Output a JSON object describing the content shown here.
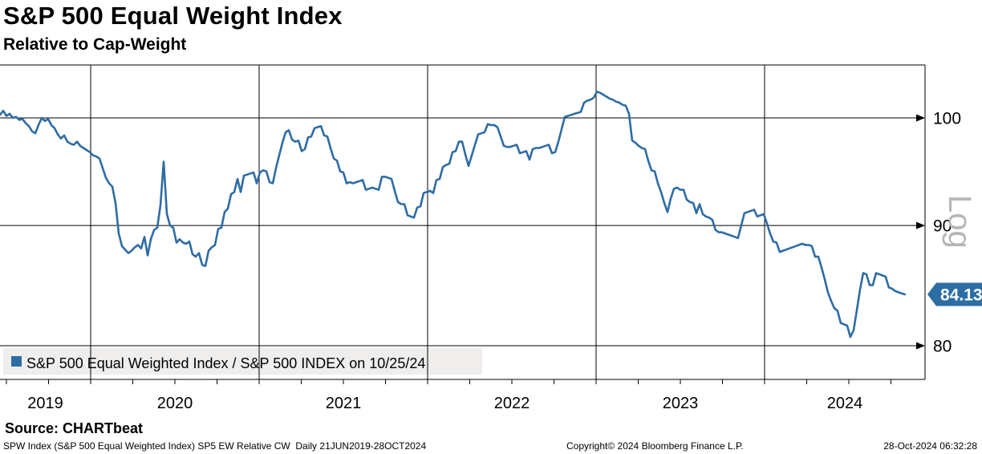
{
  "header": {
    "title": "S&P 500 Equal Weight Index",
    "subtitle": "Relative to Cap-Weight"
  },
  "legend": {
    "label": "S&P 500 Equal Weighted Index / S&P 500 INDEX on 10/25/24",
    "swatch_color": "#2e6ca4",
    "background": "#efeeed"
  },
  "source_label": "Source: CHARTbeat",
  "footer": {
    "left": "SPW Index (S&P 500 Equal Weighted Index) SP5 EW Relative CW  Daily 21JUN2019-28OCT2024",
    "center": "Copyright© 2024 Bloomberg Finance L.P.",
    "right": "28-Oct-2024 06:32:28"
  },
  "last_price_badge": {
    "value": "84.13",
    "fill": "#2e6da4",
    "text_color": "#ffffff"
  },
  "colors": {
    "line": "#2e6ca4",
    "grid": "#000000",
    "scale_label": "#b6b6b6"
  },
  "chart_data": {
    "type": "line",
    "title": "S&P 500 Equal Weight Index",
    "subtitle": "Relative to Cap-Weight",
    "x_axis": {
      "tick_labels": [
        "2019",
        "2020",
        "2021",
        "2022",
        "2023",
        "2024"
      ],
      "start": "21JUN2019",
      "end": "28OCT2024",
      "start_year_decimal": 2019.462,
      "end_year_decimal": 2024.833,
      "minor_tick_interval_years": 0.25
    },
    "y_axis": {
      "scale": "log",
      "scale_label": "Log",
      "side": "right",
      "ticks": [
        100,
        90,
        80
      ],
      "approx_range": [
        79,
        104
      ]
    },
    "legend_position": "bottom-left",
    "grid": true,
    "last_value": 84.13,
    "series": [
      {
        "name": "S&P 500 Equal Weighted Index / S&P 500 INDEX on 10/25/24",
        "color": "#2e6ca4",
        "values": [
          100.3,
          100.7,
          100.2,
          100.4,
          100.0,
          100.1,
          99.8,
          99.9,
          99.5,
          99.2,
          98.7,
          98.5,
          99.3,
          100.0,
          99.7,
          99.9,
          99.3,
          99.0,
          98.4,
          98.0,
          98.3,
          97.7,
          97.5,
          97.4,
          97.7,
          97.3,
          97.1,
          96.9,
          96.7,
          96.4,
          96.3,
          96.1,
          95.2,
          94.3,
          93.8,
          93.5,
          92.0,
          89.3,
          88.2,
          87.9,
          87.6,
          87.8,
          88.1,
          88.3,
          88.0,
          89.0,
          87.4,
          88.8,
          89.6,
          89.8,
          91.8,
          95.8,
          91.0,
          90.0,
          89.8,
          88.5,
          88.8,
          88.5,
          88.4,
          88.6,
          87.5,
          87.3,
          87.6,
          86.6,
          86.5,
          87.8,
          88.1,
          88.3,
          89.7,
          89.8,
          91.2,
          91.5,
          92.8,
          93.0,
          94.2,
          93.0,
          94.5,
          94.6,
          94.7,
          94.8,
          93.8,
          94.8,
          95.0,
          94.9,
          93.9,
          93.8,
          95.2,
          96.4,
          97.6,
          98.6,
          98.8,
          97.9,
          97.7,
          97.8,
          96.8,
          97.0,
          98.1,
          98.2,
          99.0,
          99.1,
          99.2,
          98.3,
          98.2,
          97.1,
          96.1,
          95.9,
          94.9,
          94.8,
          93.8,
          93.9,
          93.8,
          93.9,
          94.0,
          94.1,
          93.2,
          93.3,
          93.4,
          93.3,
          93.2,
          94.4,
          94.4,
          94.3,
          94.2,
          93.1,
          92.1,
          91.9,
          91.9,
          90.9,
          90.8,
          90.7,
          91.6,
          91.7,
          92.9,
          93.0,
          93.1,
          92.9,
          94.1,
          94.2,
          95.3,
          95.5,
          95.6,
          96.7,
          96.8,
          97.7,
          97.7,
          96.5,
          95.4,
          96.4,
          97.4,
          98.4,
          98.5,
          98.6,
          99.4,
          99.3,
          99.3,
          99.1,
          98.2,
          97.3,
          97.2,
          97.2,
          97.3,
          97.4,
          96.6,
          96.7,
          96.8,
          96.0,
          97.0,
          97.1,
          97.1,
          97.2,
          97.3,
          97.4,
          96.6,
          96.7,
          97.7,
          98.9,
          100.1,
          100.2,
          100.3,
          100.4,
          100.5,
          100.6,
          101.5,
          101.7,
          101.8,
          102.0,
          102.6,
          102.5,
          102.3,
          102.1,
          101.9,
          101.8,
          101.6,
          101.5,
          101.3,
          101.2,
          100.4,
          97.8,
          97.6,
          97.3,
          97.1,
          97.0,
          95.9,
          95.0,
          94.9,
          93.8,
          93.0,
          92.0,
          91.2,
          92.4,
          93.3,
          93.4,
          93.2,
          93.2,
          92.3,
          92.1,
          92.0,
          91.1,
          91.9,
          91.0,
          90.8,
          90.7,
          90.5,
          89.6,
          89.4,
          89.4,
          89.3,
          89.2,
          89.1,
          89.0,
          88.9,
          90.0,
          91.1,
          91.2,
          91.3,
          91.4,
          90.8,
          90.9,
          91.0,
          90.2,
          89.3,
          88.6,
          88.5,
          87.7,
          87.8,
          87.9,
          88.0,
          88.1,
          88.2,
          88.3,
          88.4,
          88.3,
          88.3,
          88.2,
          87.3,
          87.3,
          86.4,
          85.4,
          84.3,
          83.6,
          83.0,
          82.8,
          81.8,
          81.7,
          81.6,
          80.7,
          81.2,
          82.8,
          84.5,
          85.9,
          85.8,
          84.9,
          84.9,
          85.9,
          85.8,
          85.7,
          85.6,
          84.7,
          84.6,
          84.4,
          84.3,
          84.2,
          84.13
        ]
      }
    ]
  }
}
